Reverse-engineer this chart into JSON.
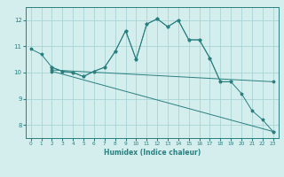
{
  "background_color": "#d4eeee",
  "grid_color": "#aad4d4",
  "line_color": "#2a7f7f",
  "xlabel": "Humidex (Indice chaleur)",
  "xlim": [
    -0.5,
    23.5
  ],
  "ylim": [
    7.5,
    12.5
  ],
  "yticks": [
    8,
    9,
    10,
    11,
    12
  ],
  "xticks": [
    0,
    1,
    2,
    3,
    4,
    5,
    6,
    7,
    8,
    9,
    10,
    11,
    12,
    13,
    14,
    15,
    16,
    17,
    18,
    19,
    20,
    21,
    22,
    23
  ],
  "series": [
    {
      "x": [
        0,
        1,
        2,
        3,
        4,
        5,
        6,
        7,
        8,
        9,
        10,
        11,
        12,
        13,
        14,
        15,
        16,
        17,
        18,
        19
      ],
      "y": [
        10.9,
        10.7,
        10.2,
        10.05,
        10.0,
        9.85,
        10.05,
        10.2,
        10.8,
        11.6,
        10.5,
        11.85,
        12.05,
        11.75,
        12.0,
        11.25,
        11.25,
        10.55,
        9.65,
        9.65
      ]
    },
    {
      "x": [
        2,
        3,
        4,
        5,
        6,
        7,
        8,
        9,
        10,
        11,
        12,
        13,
        14,
        15,
        16,
        17,
        18,
        19,
        20,
        21,
        22,
        23
      ],
      "y": [
        10.2,
        10.05,
        10.0,
        9.85,
        10.05,
        10.2,
        10.8,
        11.6,
        10.5,
        11.85,
        12.05,
        11.75,
        12.0,
        11.25,
        11.25,
        10.55,
        9.65,
        9.65,
        9.2,
        8.55,
        8.2,
        7.75
      ]
    },
    {
      "x": [
        2,
        23
      ],
      "y": [
        10.1,
        9.65
      ]
    },
    {
      "x": [
        2,
        23
      ],
      "y": [
        10.05,
        7.75
      ]
    }
  ]
}
